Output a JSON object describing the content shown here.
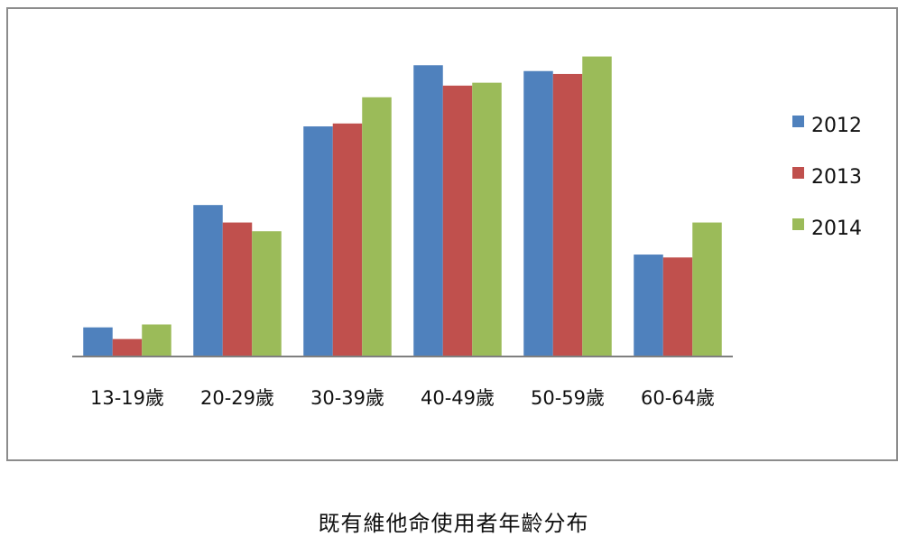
{
  "chart_data": {
    "type": "bar",
    "categories": [
      "13-19歲",
      "20-29歲",
      "30-39歲",
      "40-49歲",
      "50-59歲",
      "60-64歲"
    ],
    "series": [
      {
        "name": "2012",
        "color": "#4f81bd",
        "values": [
          10,
          52,
          79,
          100,
          98,
          35
        ]
      },
      {
        "name": "2013",
        "color": "#c0504d",
        "values": [
          6,
          46,
          80,
          93,
          97,
          34
        ]
      },
      {
        "name": "2014",
        "color": "#9bbb59",
        "values": [
          11,
          43,
          89,
          94,
          103,
          46
        ]
      }
    ],
    "ylim": [
      0,
      110
    ],
    "grid": false,
    "legend_position": "right",
    "caption": "既有維他命使用者年齡分布"
  }
}
